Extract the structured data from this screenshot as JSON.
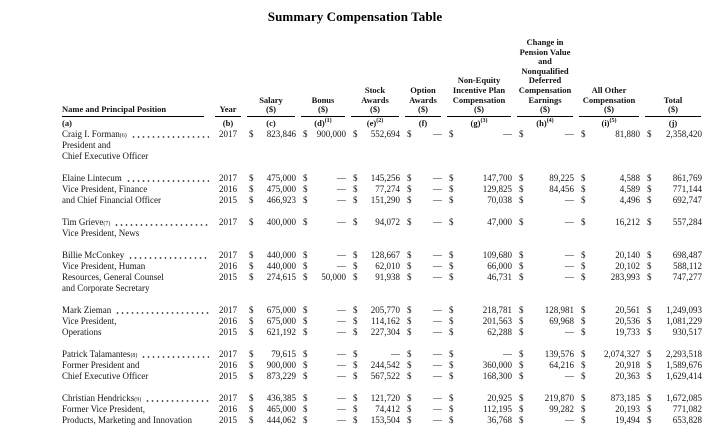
{
  "title": "Summary Compensation Table",
  "currency": "$",
  "table": {
    "columns": [
      {
        "id": "a",
        "key": "name",
        "label_lines": [
          "Name and Principal Position"
        ],
        "letter": "(a)",
        "letter_sup": ""
      },
      {
        "id": "b",
        "key": "year",
        "label_lines": [
          "Year"
        ],
        "letter": "(b)",
        "letter_sup": ""
      },
      {
        "id": "c",
        "key": "salary",
        "label_lines": [
          "Salary",
          "($)"
        ],
        "letter": "(c)",
        "letter_sup": ""
      },
      {
        "id": "d",
        "key": "bonus",
        "label_lines": [
          "Bonus",
          "($)"
        ],
        "letter": "(d)",
        "letter_sup": "(1)"
      },
      {
        "id": "e",
        "key": "stock-awards",
        "label_lines": [
          "Stock",
          "Awards",
          "($)"
        ],
        "letter": "(e)",
        "letter_sup": "(2)"
      },
      {
        "id": "f",
        "key": "option-awards",
        "label_lines": [
          "Option",
          "Awards",
          "($)"
        ],
        "letter": "(f)",
        "letter_sup": ""
      },
      {
        "id": "g",
        "key": "non-equity-incentive",
        "label_lines": [
          "Non-Equity",
          "Incentive Plan",
          "Compensation",
          "($)"
        ],
        "letter": "(g)",
        "letter_sup": "(3)"
      },
      {
        "id": "h",
        "key": "pension-deferred",
        "label_lines": [
          "Change in",
          "Pension Value",
          "and",
          "Nonqualified",
          "Deferred",
          "Compensation",
          "Earnings",
          "($)"
        ],
        "letter": "(h)",
        "letter_sup": "(4)"
      },
      {
        "id": "i",
        "key": "all-other-comp",
        "label_lines": [
          "All Other",
          "Compensation",
          "($)"
        ],
        "letter": "(i)",
        "letter_sup": "(5)"
      },
      {
        "id": "j",
        "key": "total",
        "label_lines": [
          "Total",
          "($)"
        ],
        "letter": "(j)",
        "letter_sup": ""
      }
    ],
    "executives": [
      {
        "name": "Craig I. Forman",
        "name_sup": "(6)",
        "titles": [
          "President and",
          "Chief Executive Officer"
        ],
        "rows": [
          {
            "year": "2017",
            "values": [
              "823,846",
              "900,000",
              "552,694",
              "—",
              "—",
              "—",
              "81,880",
              "2,358,420"
            ]
          }
        ]
      },
      {
        "name": "Elaine Lintecum",
        "name_sup": "",
        "titles": [
          "Vice President, Finance",
          "and Chief Financial Officer"
        ],
        "rows": [
          {
            "year": "2017",
            "values": [
              "475,000",
              "—",
              "145,256",
              "—",
              "147,700",
              "89,225",
              "4,588",
              "861,769"
            ]
          },
          {
            "year": "2016",
            "values": [
              "475,000",
              "—",
              "77,274",
              "—",
              "129,825",
              "84,456",
              "4,589",
              "771,144"
            ]
          },
          {
            "year": "2015",
            "values": [
              "466,923",
              "—",
              "151,290",
              "—",
              "70,038",
              "—",
              "4,496",
              "692,747"
            ]
          }
        ]
      },
      {
        "name": "Tim Grieve",
        "name_sup": "(7)",
        "titles": [
          "Vice President, News"
        ],
        "rows": [
          {
            "year": "2017",
            "values": [
              "400,000",
              "—",
              "94,072",
              "—",
              "47,000",
              "—",
              "16,212",
              "557,284"
            ]
          }
        ]
      },
      {
        "name": "Billie McConkey",
        "name_sup": "",
        "titles": [
          "Vice President, Human",
          "Resources, General Counsel",
          "and Corporate Secretary"
        ],
        "rows": [
          {
            "year": "2017",
            "values": [
              "440,000",
              "—",
              "128,667",
              "—",
              "109,680",
              "—",
              "20,140",
              "698,487"
            ]
          },
          {
            "year": "2016",
            "values": [
              "440,000",
              "—",
              "62,010",
              "—",
              "66,000",
              "—",
              "20,102",
              "588,112"
            ]
          },
          {
            "year": "2015",
            "values": [
              "274,615",
              "50,000",
              "91,938",
              "—",
              "46,731",
              "—",
              "283,993",
              "747,277"
            ]
          }
        ]
      },
      {
        "name": "Mark Zieman",
        "name_sup": "",
        "titles": [
          "Vice President,",
          "Operations"
        ],
        "rows": [
          {
            "year": "2017",
            "values": [
              "675,000",
              "—",
              "205,770",
              "—",
              "218,781",
              "128,981",
              "20,561",
              "1,249,093"
            ]
          },
          {
            "year": "2016",
            "values": [
              "675,000",
              "—",
              "114,162",
              "—",
              "201,563",
              "69,968",
              "20,536",
              "1,081,229"
            ]
          },
          {
            "year": "2015",
            "values": [
              "621,192",
              "—",
              "227,304",
              "—",
              "62,288",
              "—",
              "19,733",
              "930,517"
            ]
          }
        ]
      },
      {
        "name": "Patrick Talamantes",
        "name_sup": "(8)",
        "titles": [
          "Former President and",
          "Chief Executive Officer"
        ],
        "rows": [
          {
            "year": "2017",
            "values": [
              "79,615",
              "—",
              "—",
              "—",
              "—",
              "139,576",
              "2,074,327",
              "2,293,518"
            ]
          },
          {
            "year": "2016",
            "values": [
              "900,000",
              "—",
              "244,542",
              "—",
              "360,000",
              "64,216",
              "20,918",
              "1,589,676"
            ]
          },
          {
            "year": "2015",
            "values": [
              "873,229",
              "—",
              "567,522",
              "—",
              "168,300",
              "—",
              "20,363",
              "1,629,414"
            ]
          }
        ]
      },
      {
        "name": "Christian Hendricks",
        "name_sup": "(9)",
        "titles": [
          "Former Vice President,",
          "Products, Marketing and Innovation"
        ],
        "rows": [
          {
            "year": "2017",
            "values": [
              "436,385",
              "—",
              "121,720",
              "—",
              "20,925",
              "219,870",
              "873,185",
              "1,672,085"
            ]
          },
          {
            "year": "2016",
            "values": [
              "465,000",
              "—",
              "74,412",
              "—",
              "112,195",
              "99,282",
              "20,193",
              "771,082"
            ]
          },
          {
            "year": "2015",
            "values": [
              "444,062",
              "—",
              "153,504",
              "—",
              "36,768",
              "—",
              "19,494",
              "653,828"
            ]
          }
        ]
      }
    ]
  }
}
